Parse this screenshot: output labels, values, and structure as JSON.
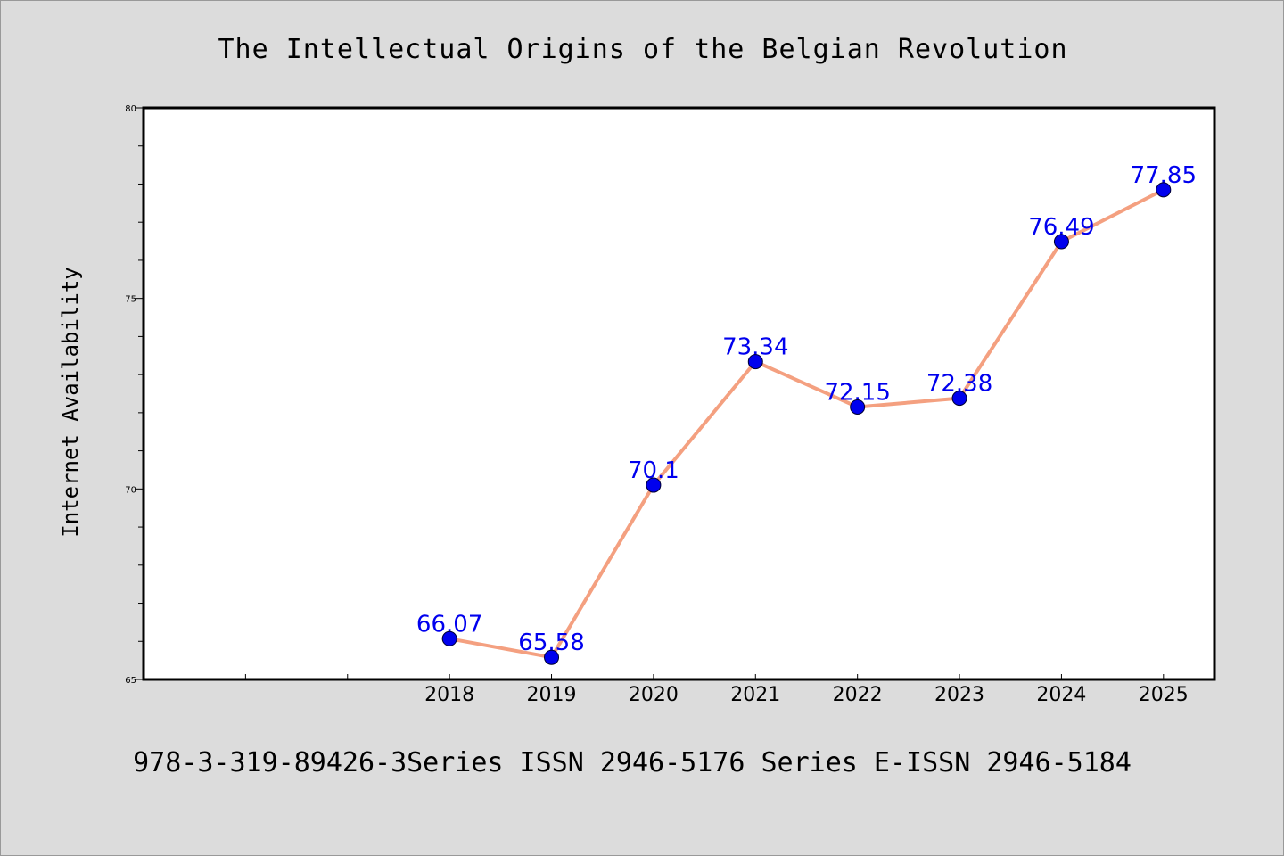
{
  "chart_data": {
    "type": "line",
    "title": "The Intellectual Origins of the Belgian Revolution",
    "ylabel": "Internet Availability",
    "xlabel": "",
    "x": [
      2018,
      2019,
      2020,
      2021,
      2022,
      2023,
      2024,
      2025
    ],
    "x_tick_labels": [
      "2018",
      "2019",
      "2020",
      "2021",
      "2022",
      "2023",
      "2024",
      "2025"
    ],
    "xlim": [
      2015,
      2025.5
    ],
    "ylim": [
      65,
      80
    ],
    "y_ticks": [
      65,
      70,
      75,
      80
    ],
    "y_tick_labels": [
      "65",
      "70",
      "75",
      "80"
    ],
    "series": [
      {
        "values": [
          66.07,
          65.58,
          70.1,
          73.34,
          72.15,
          72.38,
          76.49,
          77.85
        ],
        "data_labels": [
          "66.07",
          "65.58",
          "70.1",
          "73.34",
          "72.15",
          "72.38",
          "76.49",
          "77.85"
        ],
        "line_color": "#f4a080",
        "marker_color": "#0000ee",
        "label_color": "#0000ee"
      }
    ],
    "grid": false,
    "legend": "none",
    "footer": "978-3-319-89426-3Series ISSN 2946-5176 Series E-ISSN 2946-5184"
  }
}
